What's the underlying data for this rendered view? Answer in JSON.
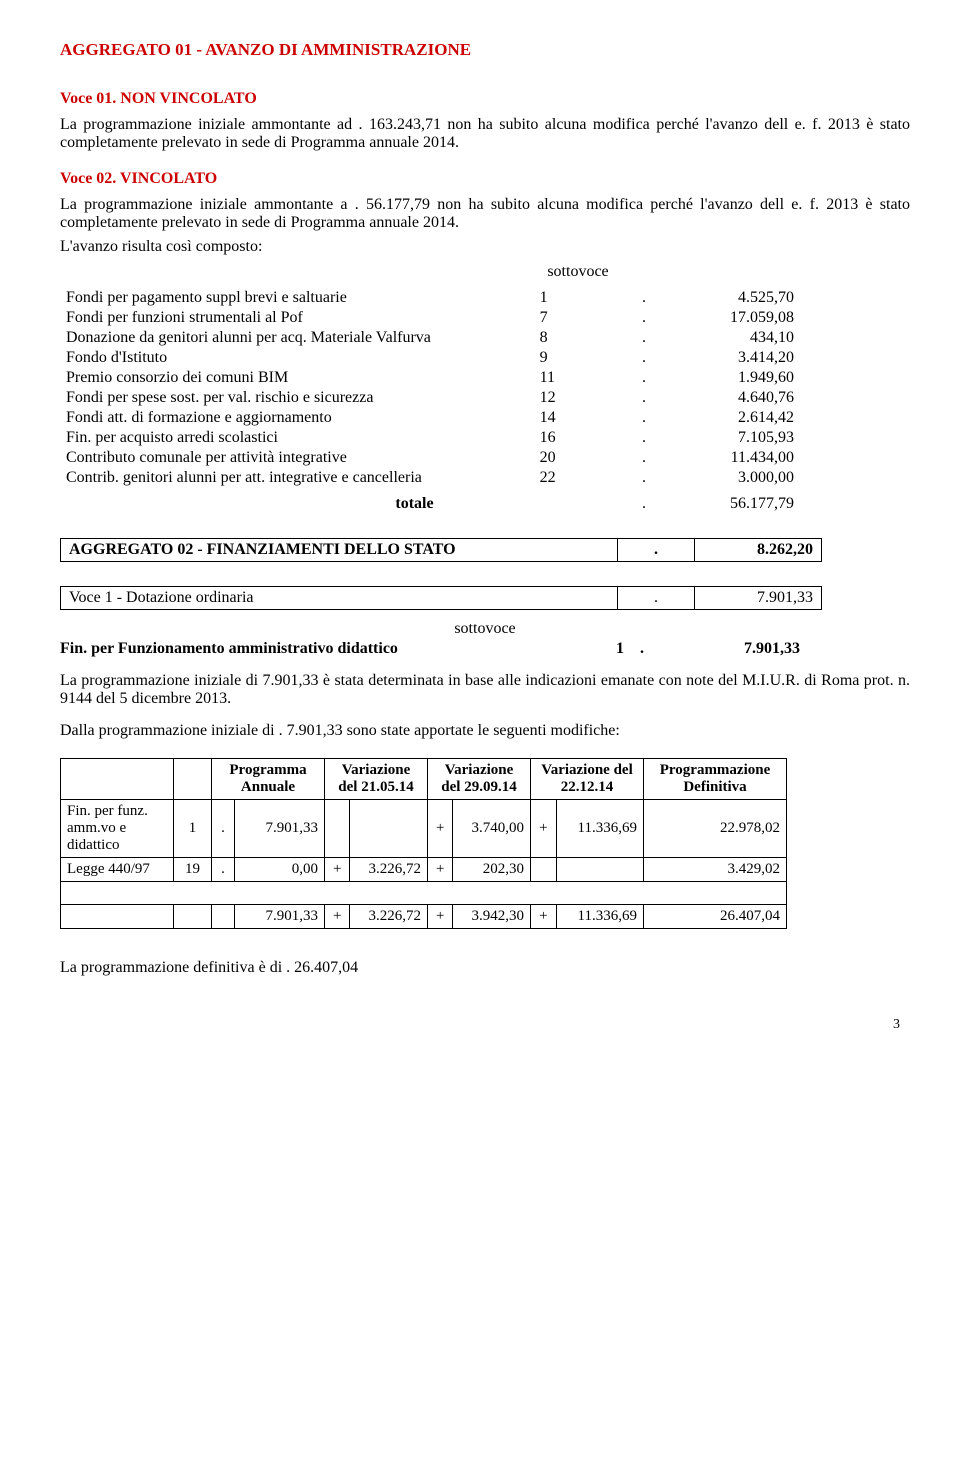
{
  "title": "AGGREGATO  01 -   AVANZO DI AMMINISTRAZIONE",
  "voce01": {
    "head": "Voce 01.  NON VINCOLATO",
    "p1": "La  programmazione iniziale ammontante ad  . 163.243,71 non ha subito alcuna modifica perché l'avanzo dell e. f. 2013 è stato completamente prelevato in sede di Programma annuale 2014."
  },
  "voce02": {
    "head": "Voce 02.  VINCOLATO",
    "p1": "La  programmazione iniziale ammontante a  . 56.177,79  non ha subito alcuna modifica perché l'avanzo dell e. f. 2013 è stato completamente prelevato in sede di Programma annuale 2014.",
    "p2": "L'avanzo  risulta così composto:",
    "sottovoce": "sottovoce",
    "rows": [
      {
        "d": "Fondi per pagamento suppl brevi e saltuarie",
        "n": "1",
        "c": ".",
        "v": "4.525,70"
      },
      {
        "d": "Fondi per funzioni strumentali al Pof",
        "n": "7",
        "c": ".",
        "v": "17.059,08"
      },
      {
        "d": "Donazione da genitori alunni per acq. Materiale Valfurva",
        "n": "8",
        "c": ".",
        "v": "434,10"
      },
      {
        "d": "Fondo d'Istituto",
        "n": "9",
        "c": ".",
        "v": "3.414,20"
      },
      {
        "d": "Premio consorzio dei comuni BIM",
        "n": "11",
        "c": ".",
        "v": "1.949,60"
      },
      {
        "d": "Fondi per spese sost. per val. rischio e sicurezza",
        "n": "12",
        "c": ".",
        "v": "4.640,76"
      },
      {
        "d": "Fondi  att. di formazione e aggiornamento",
        "n": "14",
        "c": ".",
        "v": "2.614,42"
      },
      {
        "d": "Fin. per acquisto arredi scolastici",
        "n": "16",
        "c": ".",
        "v": "7.105,93"
      },
      {
        "d": "Contributo comunale per attività integrative",
        "n": "20",
        "c": ".",
        "v": "11.434,00"
      },
      {
        "d": "Contrib. genitori alunni per att. integrative e cancelleria",
        "n": "22",
        "c": ".",
        "v": "3.000,00"
      }
    ],
    "totale_label": "totale",
    "totale_cur": ".",
    "totale_val": "56.177,79"
  },
  "agg02": {
    "label": "AGGREGATO 02 - FINANZIAMENTI DELLO STATO",
    "cur": ".",
    "val": "8.262,20"
  },
  "voce1": {
    "label": "Voce 1  - Dotazione ordinaria",
    "cur": ".",
    "val": "7.901,33"
  },
  "sottovoce2": "sottovoce",
  "fin_line": {
    "d": "Fin. per Funzionamento amministrativo didattico",
    "s": "1",
    "c": ".",
    "v": "7.901,33"
  },
  "para1": "La programmazione iniziale di   7.901,33  è  stata determinata in base  alle indicazioni  emanate con note del M.I.U.R. di Roma prot. n. 9144 del 5 dicembre 2013.",
  "para2": "Dalla programmazione iniziale di . 7.901,33 sono state apportate le seguenti modifiche:",
  "var_table": {
    "headers": {
      "c1": "",
      "c2": "",
      "prog": "Programma Annuale",
      "v1": "Variazione del 21.05.14",
      "v2": "Variazione del 29.09.14",
      "v3": "Variazione del 22.12.14",
      "def": "Programmazione Definitiva"
    },
    "rows": [
      {
        "d": "Fin. per funz. amm.vo e didattico",
        "n": "1",
        "cur": ".",
        "pa": "7.901,33",
        "s1": "",
        "v1": "",
        "s2": "+",
        "v2": "3.740,00",
        "s3": "+",
        "v3": "11.336,69",
        "def": "22.978,02"
      },
      {
        "d": "Legge 440/97",
        "n": "19",
        "cur": ".",
        "pa": "0,00",
        "s1": "+",
        "v1": "3.226,72",
        "s2": "+",
        "v2": "202,30",
        "s3": "",
        "v3": "",
        "def": "3.429,02"
      }
    ],
    "totals": {
      "pa": "7.901,33",
      "s1": "+",
      "v1": "3.226,72",
      "s2": "+",
      "v2": "3.942,30",
      "s3": "+",
      "v3": "11.336,69",
      "def": "26.407,04"
    }
  },
  "final": "La programmazione definitiva è di  . 26.407,04",
  "page": "3"
}
